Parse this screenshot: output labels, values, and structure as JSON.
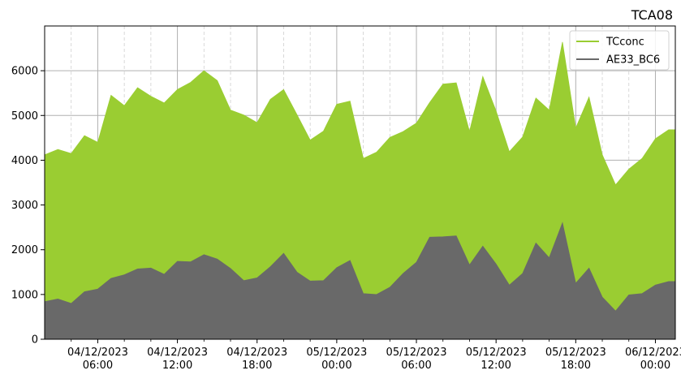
{
  "chart_data": {
    "type": "area",
    "title": "TCA08",
    "xlabel": "",
    "ylabel": "",
    "x_time_unit": "hours from 04/12/2023 00:00",
    "x_range": [
      2,
      49.5
    ],
    "ylim": [
      0,
      7000
    ],
    "y_ticks": [
      0,
      1000,
      2000,
      3000,
      4000,
      5000,
      6000
    ],
    "x_ticks_major": [
      {
        "x": 6,
        "line1": "04/12/2023",
        "line2": "06:00"
      },
      {
        "x": 12,
        "line1": "04/12/2023",
        "line2": "12:00"
      },
      {
        "x": 18,
        "line1": "04/12/2023",
        "line2": "18:00"
      },
      {
        "x": 24,
        "line1": "05/12/2023",
        "line2": "00:00"
      },
      {
        "x": 30,
        "line1": "05/12/2023",
        "line2": "06:00"
      },
      {
        "x": 36,
        "line1": "05/12/2023",
        "line2": "12:00"
      },
      {
        "x": 42,
        "line1": "05/12/2023",
        "line2": "18:00"
      },
      {
        "x": 48,
        "line1": "06/12/2023",
        "line2": "00:00"
      }
    ],
    "x_ticks_minor": [
      4,
      8,
      10,
      14,
      16,
      20,
      22,
      26,
      28,
      32,
      34,
      38,
      40,
      44,
      46,
      50
    ],
    "grid": true,
    "legend_position": "top-right",
    "series": [
      {
        "name": "TCconc",
        "color": "#9acd32",
        "x": [
          2,
          3,
          4,
          5,
          6,
          7,
          8,
          9,
          10,
          11,
          12,
          13,
          14,
          15,
          16,
          17,
          18,
          19,
          20,
          21,
          22,
          23,
          24,
          25,
          26,
          27,
          28,
          29,
          30,
          31,
          32,
          33,
          34,
          35,
          36,
          37,
          38,
          39,
          40,
          41,
          42,
          43,
          44,
          45,
          46,
          47,
          48,
          49,
          49.5
        ],
        "values": [
          4120,
          4240,
          4150,
          4550,
          4400,
          5450,
          5220,
          5620,
          5430,
          5280,
          5580,
          5740,
          6000,
          5780,
          5120,
          5010,
          4840,
          5360,
          5580,
          5020,
          4450,
          4650,
          5250,
          5320,
          4040,
          4180,
          4510,
          4640,
          4830,
          5290,
          5700,
          5730,
          4640,
          5870,
          5100,
          4190,
          4520,
          5390,
          5120,
          6640,
          4720,
          5410,
          4120,
          3450,
          3800,
          4040,
          4480,
          4680,
          4680
        ]
      },
      {
        "name": "AE33_BC6",
        "color": "#696969",
        "x": [
          2,
          3,
          4,
          5,
          6,
          7,
          8,
          9,
          10,
          11,
          12,
          13,
          14,
          15,
          16,
          17,
          18,
          19,
          20,
          21,
          22,
          23,
          24,
          25,
          26,
          27,
          28,
          29,
          30,
          31,
          32,
          33,
          34,
          35,
          36,
          37,
          38,
          39,
          40,
          41,
          42,
          43,
          44,
          45,
          46,
          47,
          48,
          49,
          49.5
        ],
        "values": [
          840,
          900,
          800,
          1060,
          1120,
          1360,
          1440,
          1570,
          1590,
          1450,
          1740,
          1730,
          1890,
          1790,
          1580,
          1310,
          1370,
          1620,
          1920,
          1500,
          1300,
          1310,
          1600,
          1760,
          1020,
          1000,
          1160,
          1470,
          1720,
          2280,
          2290,
          2310,
          1660,
          2080,
          1680,
          1210,
          1470,
          2150,
          1820,
          2600,
          1250,
          1590,
          940,
          630,
          990,
          1020,
          1210,
          1290,
          1290
        ]
      }
    ]
  }
}
